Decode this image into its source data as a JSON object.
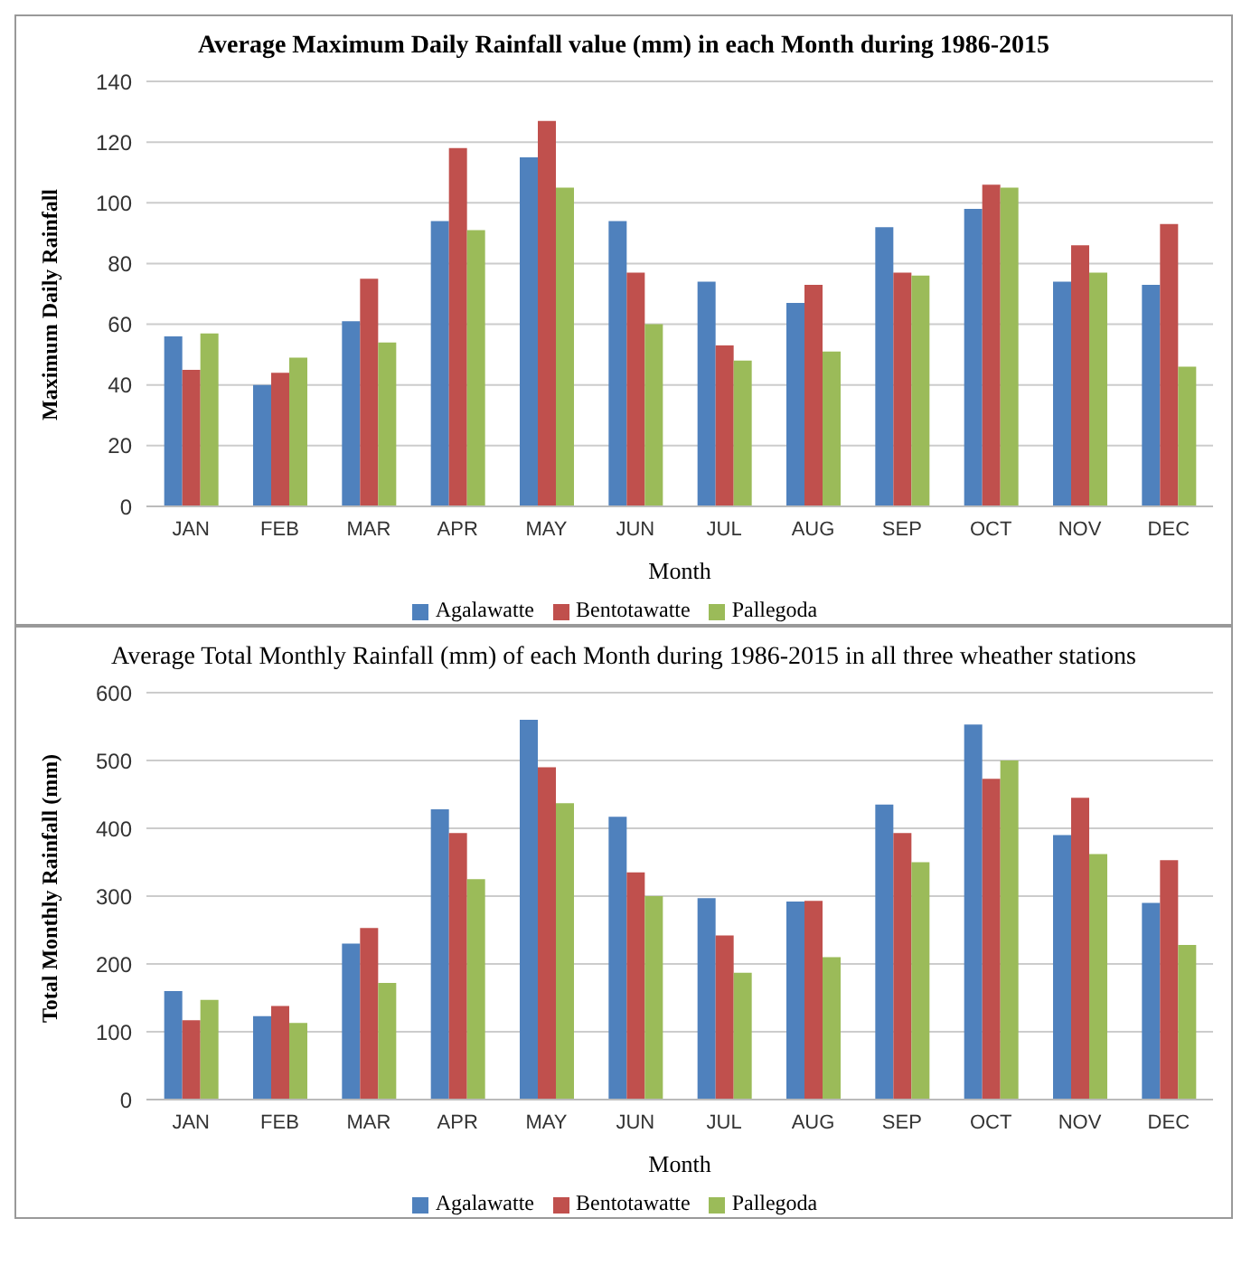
{
  "chart_data": [
    {
      "type": "bar",
      "title": "Average Maximum Daily Rainfall value (mm) in each Month during 1986-2015",
      "xlabel": "Month",
      "ylabel": "Maximum Daily Rainfall",
      "categories": [
        "JAN",
        "FEB",
        "MAR",
        "APR",
        "MAY",
        "JUN",
        "JUL",
        "AUG",
        "SEP",
        "OCT",
        "NOV",
        "DEC"
      ],
      "series": [
        {
          "name": "Agalawatte",
          "color": "#4f81bd",
          "values": [
            56,
            40,
            61,
            94,
            115,
            94,
            74,
            67,
            92,
            98,
            74,
            73
          ]
        },
        {
          "name": "Bentotawatte",
          "color": "#c0504d",
          "values": [
            45,
            44,
            75,
            118,
            127,
            77,
            53,
            73,
            77,
            106,
            86,
            93
          ]
        },
        {
          "name": "Pallegoda",
          "color": "#9bbb59",
          "values": [
            57,
            49,
            54,
            91,
            105,
            60,
            48,
            51,
            76,
            105,
            77,
            46
          ]
        }
      ],
      "ylim": [
        0,
        140
      ],
      "yticks": [
        0,
        20,
        40,
        60,
        80,
        100,
        120,
        140
      ],
      "grid": "y",
      "legend": "bottom"
    },
    {
      "type": "bar",
      "title": "Average Total Monthly Rainfall (mm) of each Month during 1986-2015  in all three wheather stations",
      "xlabel": "Month",
      "ylabel": "Total Monthly Rainfall (mm)",
      "categories": [
        "JAN",
        "FEB",
        "MAR",
        "APR",
        "MAY",
        "JUN",
        "JUL",
        "AUG",
        "SEP",
        "OCT",
        "NOV",
        "DEC"
      ],
      "series": [
        {
          "name": "Agalawatte",
          "color": "#4f81bd",
          "values": [
            160,
            123,
            230,
            428,
            560,
            417,
            297,
            292,
            435,
            553,
            390,
            290
          ]
        },
        {
          "name": "Bentotawatte",
          "color": "#c0504d",
          "values": [
            117,
            138,
            253,
            393,
            490,
            335,
            242,
            293,
            393,
            473,
            445,
            353
          ]
        },
        {
          "name": "Pallegoda",
          "color": "#9bbb59",
          "values": [
            147,
            113,
            172,
            325,
            437,
            300,
            187,
            210,
            350,
            500,
            362,
            228
          ]
        }
      ],
      "ylim": [
        0,
        600
      ],
      "yticks": [
        0,
        100,
        200,
        300,
        400,
        500,
        600
      ],
      "grid": "y",
      "legend": "bottom"
    }
  ]
}
